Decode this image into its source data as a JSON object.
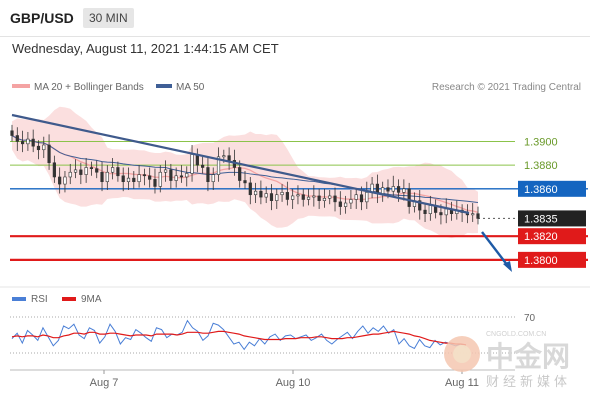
{
  "header": {
    "symbol": "GBP/USD",
    "timeframe": "30 MIN"
  },
  "datetime": "Wednesday, August 11, 2021 1:44:15 AM CET",
  "legend": {
    "bollinger": "MA 20 + Bollinger Bands",
    "ma50": "MA 50",
    "rsi": "RSI",
    "rsi_ma": "9MA"
  },
  "credit": "Research © 2021 Trading Central",
  "colors": {
    "bollinger": "#f4a3a3",
    "ma50": "#3f5f96",
    "trend": "#3f5a8c",
    "support": "#e01a1a",
    "resistance": "#8bc34a",
    "pivot": "#1565c0",
    "rsi": "#4a7fd6",
    "rsi_ma": "#e01a1a"
  },
  "chart_data": {
    "type": "line",
    "instrument": "GBP/USD",
    "interval": "30 MIN",
    "x_ticks": [
      "Aug 7",
      "Aug 10",
      "Aug 11"
    ],
    "price_levels": [
      {
        "label": "1.3900",
        "value": 1.39,
        "kind": "resistance"
      },
      {
        "label": "1.3880",
        "value": 1.388,
        "kind": "resistance"
      },
      {
        "label": "1.3860",
        "value": 1.386,
        "kind": "pivot"
      },
      {
        "label": "1.3835",
        "value": 1.3835,
        "kind": "last"
      },
      {
        "label": "1.3820",
        "value": 1.382,
        "kind": "support"
      },
      {
        "label": "1.3800",
        "value": 1.38,
        "kind": "support"
      }
    ],
    "close": [
      1.3905,
      1.39,
      1.3898,
      1.3902,
      1.3896,
      1.3893,
      1.3897,
      1.3882,
      1.387,
      1.3864,
      1.387,
      1.3874,
      1.3876,
      1.3872,
      1.3878,
      1.3877,
      1.3874,
      1.3866,
      1.3874,
      1.3878,
      1.3871,
      1.3866,
      1.3869,
      1.3866,
      1.3872,
      1.3871,
      1.3868,
      1.3862,
      1.3874,
      1.3876,
      1.3867,
      1.3871,
      1.387,
      1.3873,
      1.3889,
      1.388,
      1.3878,
      1.3866,
      1.3872,
      1.3887,
      1.3888,
      1.3884,
      1.3878,
      1.3867,
      1.3865,
      1.3855,
      1.3858,
      1.3853,
      1.3856,
      1.385,
      1.3855,
      1.3857,
      1.3851,
      1.3854,
      1.3855,
      1.3851,
      1.3853,
      1.3854,
      1.385,
      1.3852,
      1.3854,
      1.3849,
      1.3845,
      1.3848,
      1.3851,
      1.3855,
      1.3849,
      1.3857,
      1.3864,
      1.3856,
      1.3861,
      1.3858,
      1.3862,
      1.3857,
      1.386,
      1.3845,
      1.385,
      1.3842,
      1.3839,
      1.3846,
      1.384,
      1.3838,
      1.3843,
      1.3839,
      1.3842,
      1.384,
      1.3838,
      1.3839,
      1.3835
    ],
    "price_range": [
      1.3783,
      1.3935
    ],
    "rsi": {
      "levels": [
        70,
        30
      ],
      "range": [
        20,
        80
      ],
      "values": [
        46,
        52,
        41,
        55,
        50,
        44,
        58,
        48,
        38,
        44,
        60,
        57,
        62,
        50,
        46,
        58,
        55,
        41,
        48,
        62,
        54,
        40,
        47,
        45,
        56,
        52,
        47,
        43,
        58,
        56,
        47,
        51,
        50,
        53,
        66,
        58,
        54,
        44,
        49,
        63,
        61,
        56,
        48,
        40,
        42,
        34,
        42,
        38,
        46,
        40,
        48,
        51,
        44,
        49,
        50,
        46,
        48,
        50,
        44,
        47,
        51,
        44,
        40,
        45,
        49,
        53,
        46,
        54,
        60,
        52,
        58,
        54,
        60,
        52,
        56,
        40,
        46,
        38,
        35,
        45,
        38,
        36,
        44,
        39,
        42,
        40,
        38,
        40,
        36
      ],
      "ma": [
        48,
        49,
        48,
        49,
        49,
        48,
        50,
        49,
        47,
        47,
        49,
        50,
        52,
        52,
        51,
        53,
        53,
        51,
        51,
        52,
        52,
        51,
        50,
        49,
        50,
        50,
        50,
        49,
        51,
        51,
        51,
        51,
        50,
        51,
        53,
        53,
        53,
        52,
        52,
        53,
        54,
        54,
        53,
        52,
        51,
        49,
        48,
        47,
        46,
        45,
        45,
        45,
        45,
        46,
        46,
        46,
        47,
        47,
        47,
        48,
        48,
        47,
        46,
        46,
        46,
        47,
        47,
        48,
        49,
        50,
        51,
        51,
        52,
        53,
        54,
        53,
        52,
        51,
        49,
        48,
        46,
        44,
        43,
        42,
        41,
        41,
        40,
        40,
        39
      ]
    }
  },
  "watermark": {
    "main": "中金网",
    "sub": "财经新媒体",
    "domain": "CNGOLD.COM.CN"
  }
}
